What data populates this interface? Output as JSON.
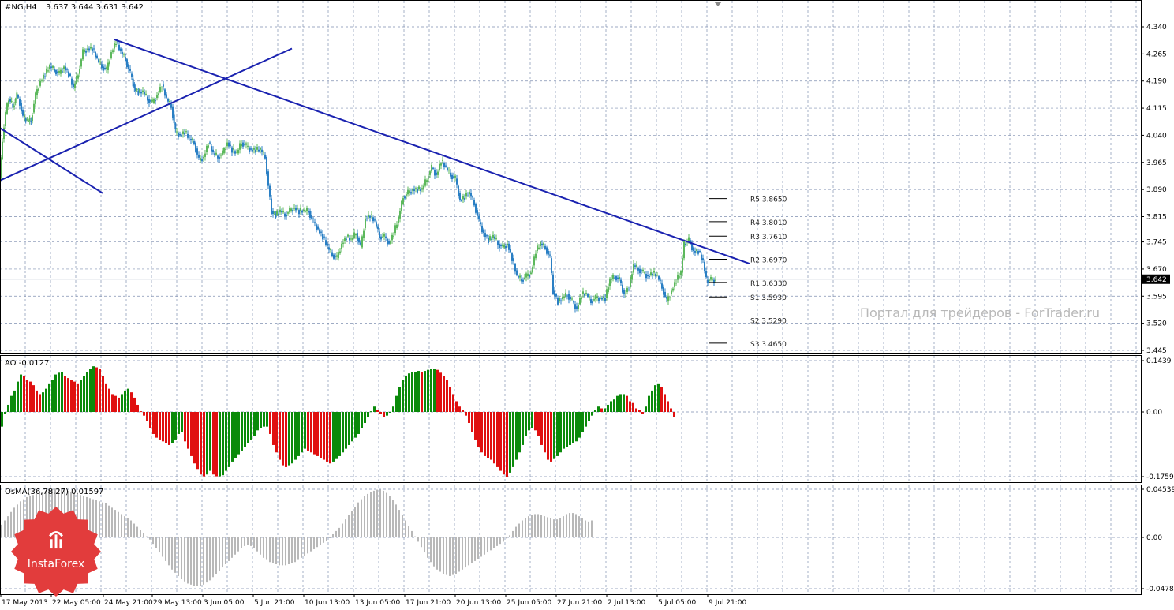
{
  "header": {
    "symbol": "#NG,H4",
    "ohlc": "3.637 3.644 3.631 3.642"
  },
  "watermark": "Портал для трейдеров - ForTrader.ru",
  "logo": {
    "text": "InstaForex"
  },
  "colors": {
    "bull": "#5cb85c",
    "bear": "#2a7fc4",
    "trendline": "#1a22b0",
    "ao_green": "#0a8a0a",
    "ao_red": "#e01010",
    "osma": "#b8b8b8",
    "grid": "#7f8fb0",
    "logo": "#e23c3c"
  },
  "chart_data": [
    {
      "type": "candlestick",
      "pane": "price",
      "title": "#NG,H4",
      "ylim": [
        3.445,
        4.385
      ],
      "yticks": [
        "4.340",
        "4.265",
        "4.190",
        "4.115",
        "4.040",
        "3.965",
        "3.890",
        "3.815",
        "3.745",
        "3.670",
        "3.595",
        "3.520",
        "3.445"
      ],
      "current_price": "3.642",
      "x_labels": [
        "17 May 2013",
        "22 May 05:00",
        "24 May 21:00",
        "29 May 13:00",
        "3 Jun 05:00",
        "5 Jun 21:00",
        "10 Jun 13:00",
        "13 Jun 05:00",
        "17 Jun 21:00",
        "20 Jun 13:00",
        "25 Jun 05:00",
        "27 Jun 21:00",
        "2 Jul 13:00",
        "5 Jul 05:00",
        "9 Jul 21:00"
      ],
      "close_path": [
        [
          0,
          3.92
        ],
        [
          4,
          4.03
        ],
        [
          8,
          4.1
        ],
        [
          12,
          4.14
        ],
        [
          17,
          4.12
        ],
        [
          22,
          4.15
        ],
        [
          26,
          4.13
        ],
        [
          30,
          4.09
        ],
        [
          35,
          4.08
        ],
        [
          40,
          4.08
        ],
        [
          46,
          4.15
        ],
        [
          52,
          4.19
        ],
        [
          58,
          4.21
        ],
        [
          64,
          4.23
        ],
        [
          70,
          4.22
        ],
        [
          76,
          4.21
        ],
        [
          82,
          4.23
        ],
        [
          88,
          4.21
        ],
        [
          94,
          4.17
        ],
        [
          100,
          4.21
        ],
        [
          106,
          4.27
        ],
        [
          112,
          4.28
        ],
        [
          118,
          4.28
        ],
        [
          124,
          4.25
        ],
        [
          130,
          4.23
        ],
        [
          136,
          4.22
        ],
        [
          142,
          4.27
        ],
        [
          148,
          4.3
        ],
        [
          154,
          4.27
        ],
        [
          160,
          4.25
        ],
        [
          166,
          4.21
        ],
        [
          171,
          4.17
        ],
        [
          176,
          4.16
        ],
        [
          182,
          4.16
        ],
        [
          188,
          4.14
        ],
        [
          194,
          4.13
        ],
        [
          200,
          4.15
        ],
        [
          206,
          4.18
        ],
        [
          212,
          4.14
        ],
        [
          218,
          4.12
        ],
        [
          223,
          4.05
        ],
        [
          229,
          4.04
        ],
        [
          235,
          4.05
        ],
        [
          241,
          4.03
        ],
        [
          247,
          4.02
        ],
        [
          253,
          3.97
        ],
        [
          259,
          3.98
        ],
        [
          265,
          4.02
        ],
        [
          271,
          3.99
        ],
        [
          277,
          3.98
        ],
        [
          283,
          3.99
        ],
        [
          289,
          4.02
        ],
        [
          295,
          4.0
        ],
        [
          301,
          3.99
        ],
        [
          307,
          4.02
        ],
        [
          313,
          4.01
        ],
        [
          319,
          4.0
        ],
        [
          325,
          4.0
        ],
        [
          331,
          4.0
        ],
        [
          337,
          3.98
        ],
        [
          341,
          3.9
        ],
        [
          345,
          3.83
        ],
        [
          350,
          3.82
        ],
        [
          356,
          3.83
        ],
        [
          362,
          3.82
        ],
        [
          368,
          3.83
        ],
        [
          374,
          3.84
        ],
        [
          380,
          3.83
        ],
        [
          386,
          3.83
        ],
        [
          392,
          3.83
        ],
        [
          398,
          3.8
        ],
        [
          404,
          3.78
        ],
        [
          410,
          3.76
        ],
        [
          416,
          3.73
        ],
        [
          422,
          3.71
        ],
        [
          428,
          3.7
        ],
        [
          434,
          3.74
        ],
        [
          440,
          3.76
        ],
        [
          446,
          3.75
        ],
        [
          452,
          3.77
        ],
        [
          458,
          3.73
        ],
        [
          464,
          3.81
        ],
        [
          470,
          3.82
        ],
        [
          476,
          3.8
        ],
        [
          482,
          3.76
        ],
        [
          488,
          3.76
        ],
        [
          494,
          3.74
        ],
        [
          500,
          3.77
        ],
        [
          506,
          3.81
        ],
        [
          512,
          3.87
        ],
        [
          518,
          3.88
        ],
        [
          524,
          3.89
        ],
        [
          530,
          3.89
        ],
        [
          536,
          3.89
        ],
        [
          542,
          3.92
        ],
        [
          548,
          3.95
        ],
        [
          554,
          3.93
        ],
        [
          560,
          3.97
        ],
        [
          566,
          3.95
        ],
        [
          572,
          3.93
        ],
        [
          578,
          3.92
        ],
        [
          584,
          3.86
        ],
        [
          590,
          3.87
        ],
        [
          596,
          3.88
        ],
        [
          602,
          3.85
        ],
        [
          608,
          3.8
        ],
        [
          614,
          3.77
        ],
        [
          620,
          3.75
        ],
        [
          626,
          3.76
        ],
        [
          632,
          3.74
        ],
        [
          638,
          3.73
        ],
        [
          644,
          3.74
        ],
        [
          650,
          3.7
        ],
        [
          656,
          3.65
        ],
        [
          662,
          3.64
        ],
        [
          668,
          3.65
        ],
        [
          674,
          3.66
        ],
        [
          680,
          3.72
        ],
        [
          686,
          3.74
        ],
        [
          692,
          3.73
        ],
        [
          698,
          3.7
        ],
        [
          702,
          3.61
        ],
        [
          708,
          3.58
        ],
        [
          714,
          3.59
        ],
        [
          720,
          3.6
        ],
        [
          726,
          3.58
        ],
        [
          732,
          3.56
        ],
        [
          738,
          3.6
        ],
        [
          744,
          3.6
        ],
        [
          750,
          3.58
        ],
        [
          756,
          3.59
        ],
        [
          762,
          3.59
        ],
        [
          768,
          3.59
        ],
        [
          774,
          3.64
        ],
        [
          780,
          3.65
        ],
        [
          786,
          3.64
        ],
        [
          792,
          3.6
        ],
        [
          798,
          3.62
        ],
        [
          804,
          3.68
        ],
        [
          810,
          3.67
        ],
        [
          816,
          3.66
        ],
        [
          822,
          3.65
        ],
        [
          828,
          3.66
        ],
        [
          834,
          3.65
        ],
        [
          840,
          3.62
        ],
        [
          846,
          3.58
        ],
        [
          852,
          3.61
        ],
        [
          858,
          3.64
        ],
        [
          864,
          3.66
        ],
        [
          868,
          3.74
        ],
        [
          874,
          3.75
        ],
        [
          880,
          3.72
        ],
        [
          886,
          3.72
        ],
        [
          892,
          3.69
        ],
        [
          896,
          3.64
        ],
        [
          902,
          3.64
        ],
        [
          908,
          3.64
        ]
      ],
      "trendlines": [
        {
          "from": [
            145,
            4.305
          ],
          "to": [
            950,
            3.685
          ]
        },
        {
          "from": [
            0,
            3.915
          ],
          "to": [
            370,
            4.28
          ]
        },
        {
          "from": [
            0,
            4.06
          ],
          "to": [
            130,
            3.88
          ]
        }
      ],
      "pivots": [
        {
          "label": "R5",
          "value": "3.8650",
          "y": 3.865
        },
        {
          "label": "R4",
          "value": "3.8010",
          "y": 3.801
        },
        {
          "label": "R3",
          "value": "3.7610",
          "y": 3.761
        },
        {
          "label": "R2",
          "value": "3.6970",
          "y": 3.697
        },
        {
          "label": "R1",
          "value": "3.6330",
          "y": 3.633
        },
        {
          "label": "S1",
          "value": "3.5930",
          "y": 3.593
        },
        {
          "label": "S2",
          "value": "3.5290",
          "y": 3.529
        },
        {
          "label": "S3",
          "value": "3.4650",
          "y": 3.465
        }
      ]
    },
    {
      "type": "bar",
      "pane": "AO",
      "title": "AO -0.0127",
      "ylim": [
        -0.188,
        0.15
      ],
      "yticks": [
        "0.1439",
        "0.00",
        "-0.1759"
      ],
      "bar_spacing": 4,
      "values": [
        -0.04,
        -0.005,
        0.02,
        0.045,
        0.06,
        0.085,
        0.105,
        0.1,
        0.09,
        0.085,
        0.075,
        0.06,
        0.05,
        0.055,
        0.065,
        0.08,
        0.09,
        0.105,
        0.11,
        0.112,
        0.1,
        0.095,
        0.09,
        0.085,
        0.08,
        0.09,
        0.1,
        0.112,
        0.12,
        0.128,
        0.125,
        0.12,
        0.1,
        0.08,
        0.065,
        0.05,
        0.045,
        0.04,
        0.05,
        0.06,
        0.065,
        0.055,
        0.04,
        0.02,
        0.002,
        -0.01,
        -0.025,
        -0.045,
        -0.06,
        -0.07,
        -0.075,
        -0.08,
        -0.085,
        -0.09,
        -0.085,
        -0.075,
        -0.06,
        -0.055,
        -0.08,
        -0.1,
        -0.12,
        -0.14,
        -0.155,
        -0.17,
        -0.175,
        -0.17,
        -0.16,
        -0.17,
        -0.175,
        -0.175,
        -0.172,
        -0.16,
        -0.15,
        -0.135,
        -0.125,
        -0.115,
        -0.105,
        -0.095,
        -0.085,
        -0.075,
        -0.065,
        -0.05,
        -0.045,
        -0.04,
        -0.04,
        -0.06,
        -0.09,
        -0.11,
        -0.13,
        -0.145,
        -0.15,
        -0.145,
        -0.14,
        -0.13,
        -0.12,
        -0.11,
        -0.1,
        -0.105,
        -0.11,
        -0.115,
        -0.12,
        -0.125,
        -0.13,
        -0.135,
        -0.14,
        -0.135,
        -0.128,
        -0.12,
        -0.11,
        -0.1,
        -0.09,
        -0.08,
        -0.07,
        -0.06,
        -0.045,
        -0.03,
        -0.015,
        0.002,
        0.015,
        0.005,
        -0.005,
        -0.015,
        -0.01,
        0.0,
        0.015,
        0.045,
        0.07,
        0.09,
        0.102,
        0.108,
        0.112,
        0.112,
        0.115,
        0.112,
        0.115,
        0.118,
        0.12,
        0.12,
        0.118,
        0.11,
        0.1,
        0.09,
        0.07,
        0.05,
        0.03,
        0.015,
        0.005,
        -0.01,
        -0.03,
        -0.055,
        -0.075,
        -0.095,
        -0.11,
        -0.12,
        -0.125,
        -0.13,
        -0.14,
        -0.15,
        -0.16,
        -0.17,
        -0.178,
        -0.165,
        -0.15,
        -0.13,
        -0.11,
        -0.09,
        -0.065,
        -0.05,
        -0.045,
        -0.05,
        -0.065,
        -0.09,
        -0.11,
        -0.13,
        -0.135,
        -0.128,
        -0.12,
        -0.11,
        -0.1,
        -0.095,
        -0.09,
        -0.085,
        -0.08,
        -0.07,
        -0.055,
        -0.04,
        -0.025,
        -0.01,
        0.005,
        0.015,
        0.01,
        0.01,
        0.02,
        0.03,
        0.035,
        0.045,
        0.05,
        0.05,
        0.045,
        0.03,
        0.025,
        0.01,
        0.005,
        -0.005,
        0.015,
        0.045,
        0.06,
        0.075,
        0.08,
        0.07,
        0.05,
        0.03,
        0.01,
        -0.013
      ]
    },
    {
      "type": "histogram",
      "pane": "OsMA",
      "title": "OsMA(36,78,27) 0.01597",
      "ylim": [
        -0.05,
        0.047
      ],
      "yticks": [
        "0.04539",
        "0.00",
        "-0.04781"
      ],
      "bar_spacing": 4,
      "values": [
        0.012,
        0.016,
        0.02,
        0.024,
        0.028,
        0.031,
        0.034,
        0.036,
        0.038,
        0.039,
        0.04,
        0.041,
        0.042,
        0.043,
        0.044,
        0.045,
        0.0455,
        0.046,
        0.046,
        0.0455,
        0.045,
        0.044,
        0.043,
        0.042,
        0.041,
        0.04,
        0.039,
        0.038,
        0.037,
        0.036,
        0.035,
        0.034,
        0.033,
        0.032,
        0.03,
        0.028,
        0.026,
        0.024,
        0.022,
        0.02,
        0.018,
        0.016,
        0.013,
        0.01,
        0.007,
        0.004,
        0.001,
        -0.002,
        -0.006,
        -0.01,
        -0.014,
        -0.018,
        -0.022,
        -0.026,
        -0.03,
        -0.033,
        -0.036,
        -0.039,
        -0.041,
        -0.043,
        -0.044,
        -0.045,
        -0.0455,
        -0.045,
        -0.044,
        -0.042,
        -0.04,
        -0.037,
        -0.034,
        -0.031,
        -0.028,
        -0.025,
        -0.022,
        -0.019,
        -0.016,
        -0.013,
        -0.01,
        -0.008,
        -0.007,
        -0.008,
        -0.01,
        -0.013,
        -0.016,
        -0.019,
        -0.021,
        -0.023,
        -0.024,
        -0.025,
        -0.026,
        -0.026,
        -0.026,
        -0.025,
        -0.024,
        -0.023,
        -0.021,
        -0.019,
        -0.017,
        -0.015,
        -0.013,
        -0.011,
        -0.009,
        -0.007,
        -0.005,
        -0.003,
        0.0,
        0.003,
        0.006,
        0.009,
        0.013,
        0.017,
        0.021,
        0.025,
        0.029,
        0.033,
        0.036,
        0.039,
        0.041,
        0.043,
        0.044,
        0.045,
        0.045,
        0.044,
        0.042,
        0.039,
        0.035,
        0.031,
        0.026,
        0.021,
        0.016,
        0.011,
        0.006,
        0.001,
        -0.004,
        -0.009,
        -0.014,
        -0.019,
        -0.023,
        -0.027,
        -0.03,
        -0.032,
        -0.034,
        -0.035,
        -0.036,
        -0.035,
        -0.034,
        -0.032,
        -0.03,
        -0.028,
        -0.026,
        -0.024,
        -0.022,
        -0.02,
        -0.018,
        -0.016,
        -0.014,
        -0.012,
        -0.01,
        -0.008,
        -0.006,
        -0.004,
        -0.001,
        0.002,
        0.006,
        0.01,
        0.013,
        0.016,
        0.018,
        0.02,
        0.021,
        0.022,
        0.022,
        0.021,
        0.02,
        0.019,
        0.018,
        0.017,
        0.017,
        0.018,
        0.02,
        0.022,
        0.023,
        0.023,
        0.022,
        0.02,
        0.018,
        0.016,
        0.015,
        0.016
      ]
    }
  ]
}
